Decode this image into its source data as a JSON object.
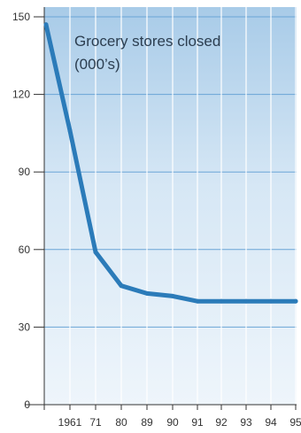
{
  "chart_data": {
    "type": "line",
    "title_lines": [
      "Grocery stores closed",
      "(000’s)"
    ],
    "categories": [
      "1961",
      "71",
      "80",
      "89",
      "90",
      "91",
      "92",
      "93",
      "94",
      "95"
    ],
    "x_tick_labels": [
      "1961",
      "71",
      "80",
      "89",
      "90",
      "91",
      "92",
      "93",
      "94",
      "95"
    ],
    "x": [
      "1955",
      "1961",
      "1971",
      "1980",
      "1989",
      "1990",
      "1991",
      "1992",
      "1993",
      "1994",
      "1995"
    ],
    "values": [
      147,
      106,
      59,
      46,
      43,
      42,
      40,
      40,
      40,
      40,
      40
    ],
    "y_ticks": [
      0,
      30,
      60,
      90,
      120,
      150
    ],
    "ylim": [
      0,
      152
    ],
    "grid": true,
    "colors": {
      "line": "#2b7bb9",
      "plot_bg_top": "#a8cbe8",
      "plot_bg_bottom": "#eef5fb",
      "grid": "#6aa5d6",
      "axis": "#333333"
    }
  }
}
